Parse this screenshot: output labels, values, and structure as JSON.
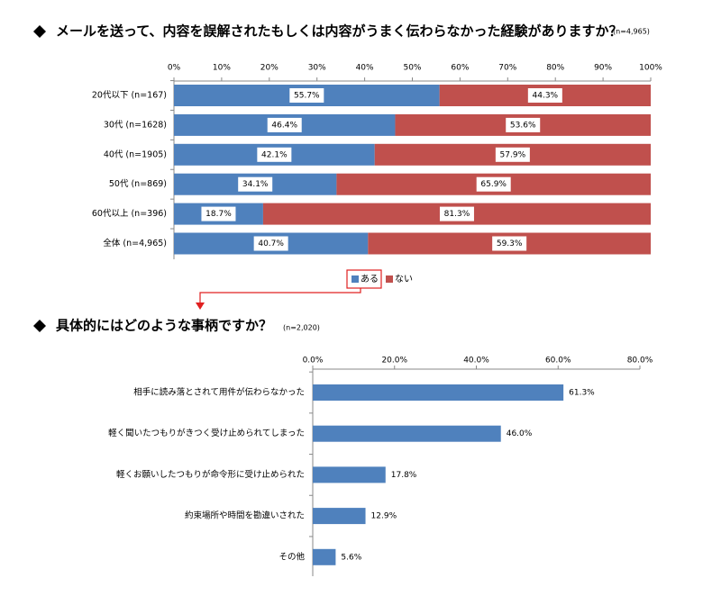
{
  "chart_data": [
    {
      "type": "bar",
      "orientation": "horizontal",
      "stacked": true,
      "title": "メールを送って、内容を誤解されたもしくは内容がうまく伝わらなかった経験がありますか？",
      "subtitle": "(n=4,965)",
      "categories": [
        "20代以下 (n=167)",
        "30代 (n=1628)",
        "40代 (n=1905)",
        "50代 (n=869)",
        "60代以上 (n=396)",
        "全体 (n=4,965)"
      ],
      "series": [
        {
          "name": "ある",
          "color": "#4f81bd",
          "values": [
            55.7,
            46.4,
            42.1,
            34.1,
            18.7,
            40.7
          ],
          "value_labels": [
            "55.7%",
            "46.4%",
            "42.1%",
            "34.1%",
            "18.7%",
            "40.7%"
          ]
        },
        {
          "name": "ない",
          "color": "#c0504d",
          "values": [
            44.3,
            53.6,
            57.9,
            65.9,
            81.3,
            59.3
          ],
          "value_labels": [
            "44.3%",
            "53.6%",
            "57.9%",
            "65.9%",
            "81.3%",
            "59.3%"
          ]
        }
      ],
      "xlim": [
        0,
        100
      ],
      "xticks": [
        {
          "value": 0,
          "label": "0%"
        },
        {
          "value": 10,
          "label": "10%"
        },
        {
          "value": 20,
          "label": "20%"
        },
        {
          "value": 30,
          "label": "30%"
        },
        {
          "value": 40,
          "label": "40%"
        },
        {
          "value": 50,
          "label": "50%"
        },
        {
          "value": 60,
          "label": "60%"
        },
        {
          "value": 70,
          "label": "70%"
        },
        {
          "value": 80,
          "label": "80%"
        },
        {
          "value": 90,
          "label": "90%"
        },
        {
          "value": 100,
          "label": "100%"
        }
      ],
      "legend": "bottom"
    },
    {
      "type": "bar",
      "orientation": "horizontal",
      "stacked": false,
      "title": "具体的にはどのような事柄ですか？",
      "subtitle": "(n=2,020)",
      "categories": [
        "相手に読み落とされて用件が伝わらなかった",
        "軽く聞いたつもりがきつく受け止められてしまった",
        "軽くお願いしたつもりが命令形に受け止められた",
        "約束場所や時間を勘違いされた",
        "その他"
      ],
      "values": [
        61.3,
        46.0,
        17.8,
        12.9,
        5.6
      ],
      "value_labels": [
        "61.3%",
        "46.0%",
        "17.8%",
        "12.9%",
        "5.6%"
      ],
      "color": "#4f81bd",
      "xlim": [
        0,
        80
      ],
      "xticks": [
        {
          "value": 0,
          "label": "0.0%"
        },
        {
          "value": 20,
          "label": "20.0%"
        },
        {
          "value": 40,
          "label": "40.0%"
        },
        {
          "value": 60,
          "label": "60.0%"
        },
        {
          "value": 80,
          "label": "80.0%"
        }
      ]
    }
  ]
}
